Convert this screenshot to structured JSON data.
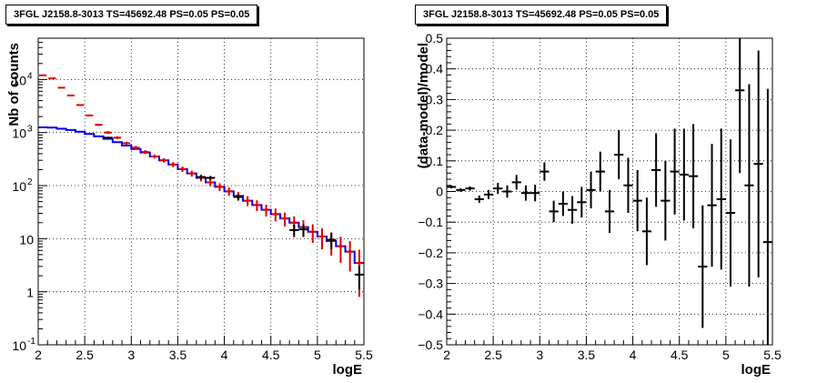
{
  "colors": {
    "data": "#000000",
    "model_red": "#e00000",
    "model_blue": "#0000ee",
    "grid": "#000000"
  },
  "chart_data": [
    {
      "type": "histogram-line",
      "title": "3FGL J2158.8-3013 TS=45692.48 PS=0.05 PS=0.05",
      "xlabel": "logE",
      "ylabel": "Nb of counts",
      "yscale": "log",
      "xlim": [
        2,
        5.5
      ],
      "ylim": [
        0.1,
        60000
      ],
      "x_ticks": [
        "2",
        "2.5",
        "3",
        "3.5",
        "4",
        "4.5",
        "5",
        "5.5"
      ],
      "y_ticks": [
        {
          "value": 0.1,
          "label": "10",
          "exp": "-1"
        },
        {
          "value": 1,
          "label": "1",
          "exp": ""
        },
        {
          "value": 10,
          "label": "10",
          "exp": ""
        },
        {
          "value": 100,
          "label": "10",
          "exp": "2"
        },
        {
          "value": 1000,
          "label": "10",
          "exp": "3"
        },
        {
          "value": 10000,
          "label": "10",
          "exp": "4"
        }
      ],
      "grid": true,
      "bin_edges": [
        2.0,
        2.1,
        2.2,
        2.3,
        2.4,
        2.5,
        2.6,
        2.7,
        2.8,
        2.9,
        3.0,
        3.1,
        3.2,
        3.3,
        3.4,
        3.5,
        3.6,
        3.7,
        3.8,
        3.9,
        4.0,
        4.1,
        4.2,
        4.3,
        4.4,
        4.5,
        4.6,
        4.7,
        4.8,
        4.9,
        5.0,
        5.1,
        5.2,
        5.3,
        5.4,
        5.5
      ],
      "series": [
        {
          "name": "",
          "style": "step",
          "color": "#0000ee",
          "values": [
            1250,
            1240,
            1180,
            1120,
            1040,
            940,
            850,
            760,
            660,
            570,
            490,
            420,
            355,
            300,
            250,
            205,
            170,
            140,
            115,
            95,
            78,
            64,
            52,
            43,
            35,
            29,
            24,
            20,
            16.5,
            13.5,
            11,
            9,
            7.2,
            5.7,
            3.5
          ]
        },
        {
          "name": "",
          "style": "errorbar",
          "color": "#e00000",
          "values": [
            12000,
            10500,
            7000,
            5000,
            3300,
            2100,
            1400,
            1000,
            800,
            630,
            520,
            430,
            355,
            300,
            250,
            205,
            170,
            140,
            115,
            95,
            78,
            64,
            52,
            43,
            35,
            29,
            24,
            20,
            16.5,
            13.5,
            11,
            9,
            7.2,
            5.7,
            3.5
          ],
          "errors": [
            220,
            200,
            160,
            140,
            110,
            90,
            70,
            60,
            50,
            45,
            40,
            36,
            32,
            29,
            27,
            24,
            22,
            20,
            18,
            16,
            14,
            12,
            11,
            9.8,
            8.7,
            7.9,
            7.1,
            6.4,
            5.8,
            5.2,
            4.7,
            4.2,
            3.7,
            3.3,
            2.7
          ]
        },
        {
          "name": "",
          "style": "errorbar",
          "color": "#000000",
          "points": [
            {
              "x": 2.75,
              "y": 800,
              "err": 30
            },
            {
              "x": 3.75,
              "y": 145,
              "err": 12
            },
            {
              "x": 3.85,
              "y": 140,
              "err": 12
            },
            {
              "x": 4.15,
              "y": 61,
              "err": 8
            },
            {
              "x": 4.75,
              "y": 14.5,
              "err": 3.8
            },
            {
              "x": 4.85,
              "y": 15,
              "err": 3.9
            },
            {
              "x": 5.15,
              "y": 9.5,
              "err": 3.1
            },
            {
              "x": 5.45,
              "y": 2.1,
              "err": 1.0
            }
          ]
        }
      ]
    },
    {
      "type": "scatter-errorbar",
      "title": "3FGL J2158.8-3013 TS=45692.48 PS=0.05 PS=0.05",
      "xlabel": "logE",
      "ylabel": "(data-model)/model",
      "xlim": [
        2,
        5.5
      ],
      "ylim": [
        -0.5,
        0.5
      ],
      "x_ticks": [
        "2",
        "2.5",
        "3",
        "3.5",
        "4",
        "4.5",
        "5",
        "5.5"
      ],
      "y_ticks": [
        "−0.5",
        "−0.4",
        "−0.3",
        "−0.2",
        "−0.1",
        "0",
        "0.1",
        "0.2",
        "0.3",
        "0.4",
        "0.5"
      ],
      "grid": true,
      "points": [
        {
          "x": 2.05,
          "y": 0.015,
          "err": 0.005
        },
        {
          "x": 2.15,
          "y": 0.005,
          "err": 0.006
        },
        {
          "x": 2.25,
          "y": 0.01,
          "err": 0.007
        },
        {
          "x": 2.35,
          "y": -0.025,
          "err": 0.012
        },
        {
          "x": 2.45,
          "y": -0.01,
          "err": 0.015
        },
        {
          "x": 2.55,
          "y": 0.01,
          "err": 0.018
        },
        {
          "x": 2.65,
          "y": 0.0,
          "err": 0.02
        },
        {
          "x": 2.75,
          "y": 0.03,
          "err": 0.024
        },
        {
          "x": 2.85,
          "y": -0.005,
          "err": 0.025
        },
        {
          "x": 2.95,
          "y": -0.005,
          "err": 0.027
        },
        {
          "x": 3.05,
          "y": 0.065,
          "err": 0.03
        },
        {
          "x": 3.15,
          "y": -0.065,
          "err": 0.035
        },
        {
          "x": 3.25,
          "y": -0.04,
          "err": 0.04
        },
        {
          "x": 3.35,
          "y": -0.06,
          "err": 0.045
        },
        {
          "x": 3.45,
          "y": -0.035,
          "err": 0.05
        },
        {
          "x": 3.55,
          "y": 0.005,
          "err": 0.06
        },
        {
          "x": 3.65,
          "y": 0.065,
          "err": 0.065
        },
        {
          "x": 3.75,
          "y": -0.065,
          "err": 0.07
        },
        {
          "x": 3.85,
          "y": 0.12,
          "err": 0.08
        },
        {
          "x": 3.95,
          "y": 0.02,
          "err": 0.09
        },
        {
          "x": 4.05,
          "y": -0.03,
          "err": 0.1
        },
        {
          "x": 4.15,
          "y": -0.13,
          "err": 0.11
        },
        {
          "x": 4.25,
          "y": 0.07,
          "err": 0.12
        },
        {
          "x": 4.35,
          "y": -0.03,
          "err": 0.13
        },
        {
          "x": 4.45,
          "y": 0.065,
          "err": 0.14
        },
        {
          "x": 4.55,
          "y": 0.055,
          "err": 0.15
        },
        {
          "x": 4.65,
          "y": 0.05,
          "err": 0.17
        },
        {
          "x": 4.75,
          "y": -0.245,
          "err": 0.2
        },
        {
          "x": 4.85,
          "y": -0.045,
          "err": 0.2
        },
        {
          "x": 4.95,
          "y": -0.025,
          "err": 0.23
        },
        {
          "x": 5.05,
          "y": -0.07,
          "err": 0.24
        },
        {
          "x": 5.15,
          "y": 0.33,
          "err": 0.27
        },
        {
          "x": 5.25,
          "y": 0.02,
          "err": 0.33
        },
        {
          "x": 5.35,
          "y": 0.09,
          "err": 0.37
        },
        {
          "x": 5.45,
          "y": -0.165,
          "err": 0.5
        }
      ]
    }
  ]
}
